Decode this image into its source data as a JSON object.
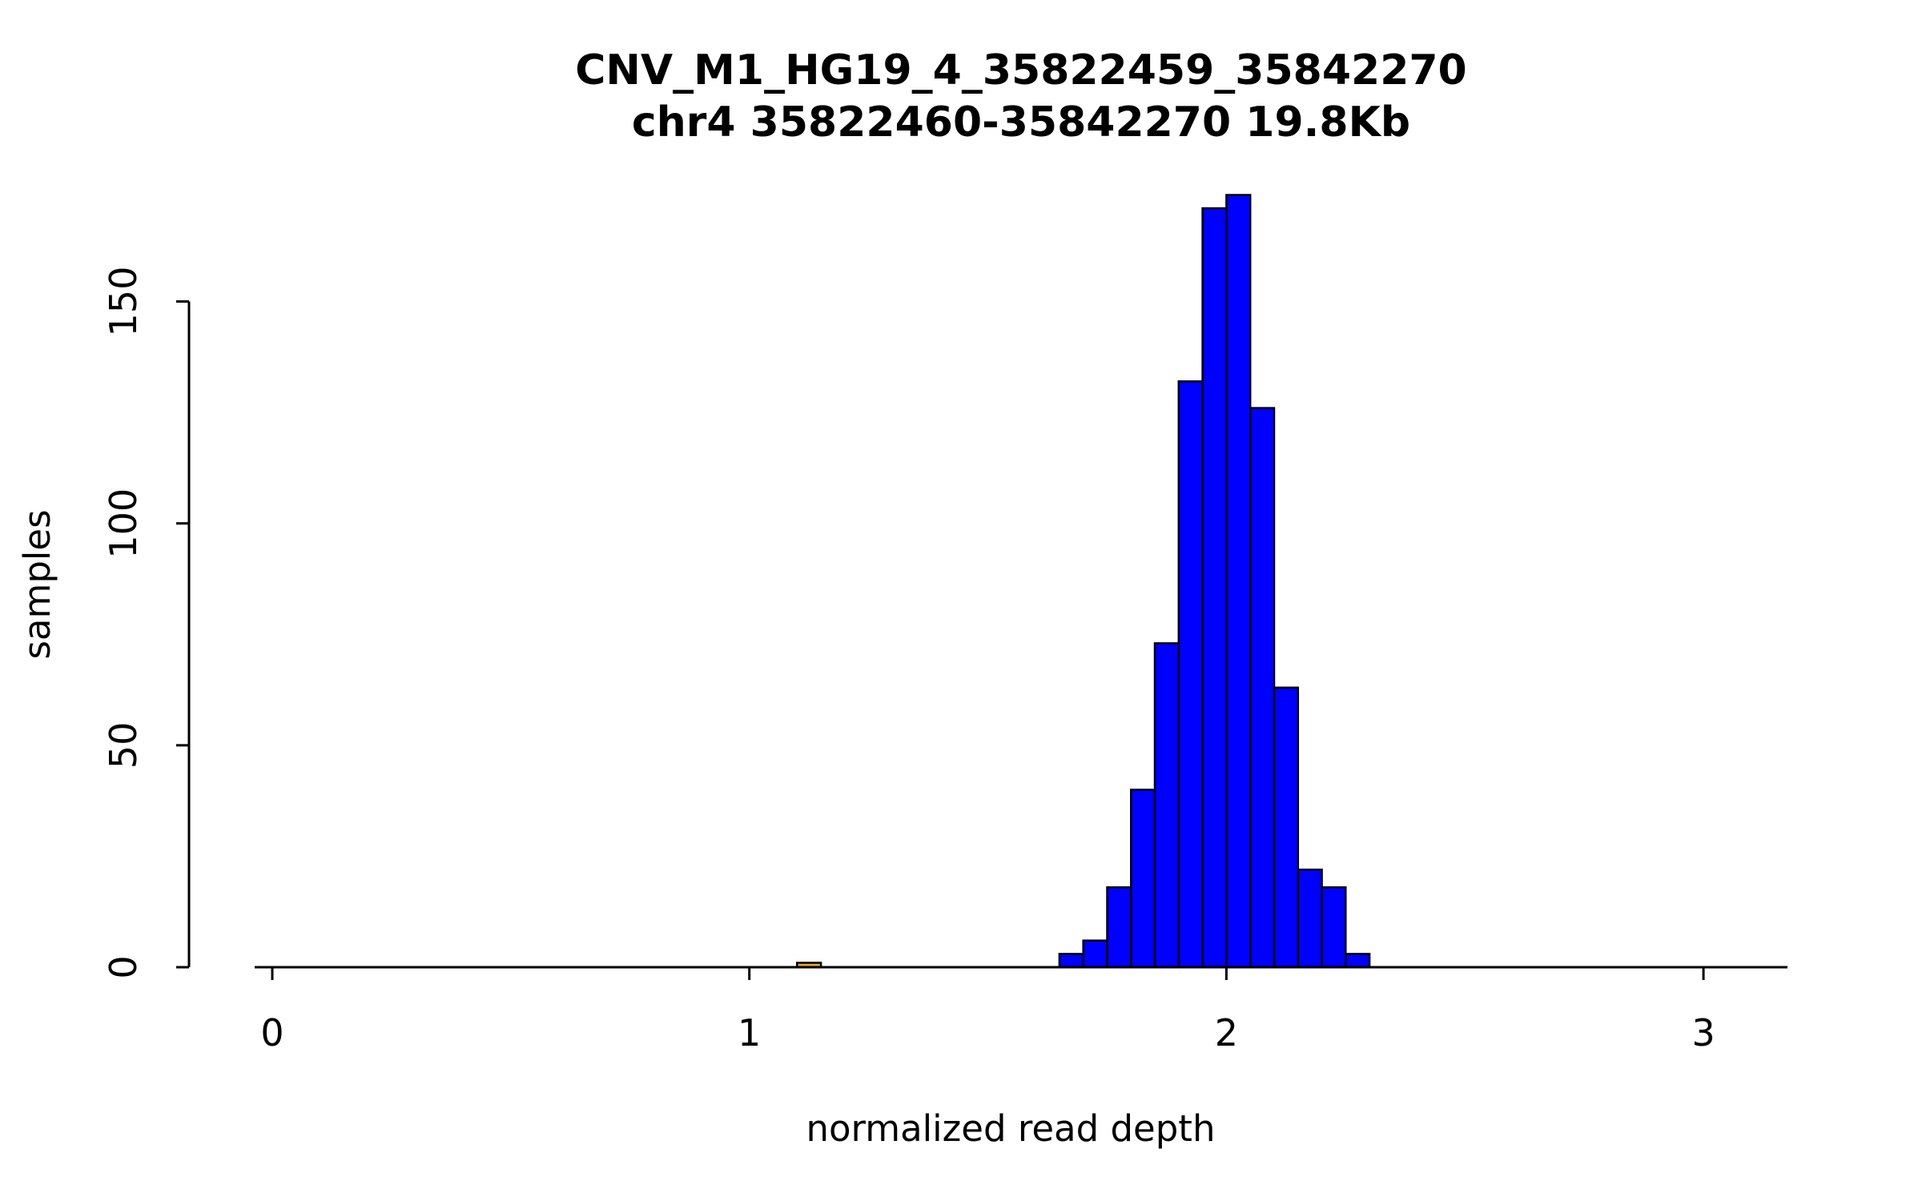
{
  "chart_data": {
    "type": "bar",
    "title": "CNV_M1_HG19_4_35822459_35842270",
    "subtitle": "chr4 35822460-35842270 19.8Kb",
    "xlabel": "normalized read depth",
    "ylabel": "samples",
    "xlim": [
      -0.04,
      3.18
    ],
    "ylim": [
      0,
      174
    ],
    "xticks": [
      0,
      1,
      2,
      3
    ],
    "yticks": [
      0,
      50,
      100,
      150
    ],
    "bin_width": 0.05,
    "colors": {
      "main_bar": "#0000ff",
      "outlier_bar": "#e8a33d",
      "bar_border": "#000000",
      "axis": "#000000"
    },
    "bars": [
      {
        "x": 1.1,
        "height": 1,
        "series": "outlier"
      },
      {
        "x": 1.65,
        "height": 3,
        "series": "main"
      },
      {
        "x": 1.7,
        "height": 6,
        "series": "main"
      },
      {
        "x": 1.75,
        "height": 18,
        "series": "main"
      },
      {
        "x": 1.8,
        "height": 40,
        "series": "main"
      },
      {
        "x": 1.85,
        "height": 73,
        "series": "main"
      },
      {
        "x": 1.9,
        "height": 132,
        "series": "main"
      },
      {
        "x": 1.95,
        "height": 171,
        "series": "main"
      },
      {
        "x": 2.0,
        "height": 174,
        "series": "main"
      },
      {
        "x": 2.05,
        "height": 126,
        "series": "main"
      },
      {
        "x": 2.1,
        "height": 63,
        "series": "main"
      },
      {
        "x": 2.15,
        "height": 22,
        "series": "main"
      },
      {
        "x": 2.2,
        "height": 18,
        "series": "main"
      },
      {
        "x": 2.25,
        "height": 3,
        "series": "main"
      }
    ],
    "legend": null,
    "grid": false
  }
}
